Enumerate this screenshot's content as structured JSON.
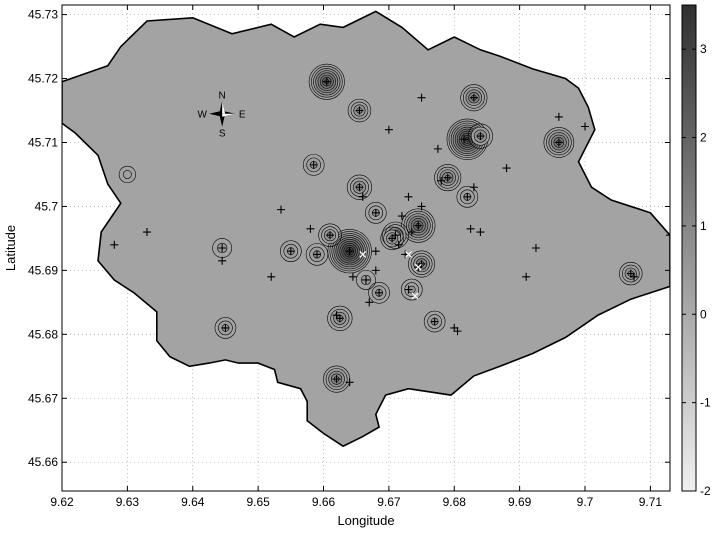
{
  "chart_data": {
    "type": "heatmap",
    "xlabel": "Longitude",
    "ylabel": "Latitude",
    "xlim": [
      9.62,
      9.713
    ],
    "ylim": [
      45.6555,
      45.7315
    ],
    "x_ticks": [
      "9.62",
      "9.63",
      "9.64",
      "9.65",
      "9.66",
      "9.67",
      "9.68",
      "9.69",
      "9.7",
      "9.71"
    ],
    "x_tick_values": [
      9.62,
      9.63,
      9.64,
      9.65,
      9.66,
      9.67,
      9.68,
      9.69,
      9.7,
      9.71
    ],
    "y_ticks": [
      "45.66",
      "45.67",
      "45.68",
      "45.69",
      "45.7",
      "45.71",
      "45.72",
      "45.73"
    ],
    "y_tick_values": [
      45.66,
      45.67,
      45.68,
      45.69,
      45.7,
      45.71,
      45.72,
      45.73
    ],
    "grid": true,
    "colorbar": {
      "min": -2,
      "max": 3.5,
      "ticks": [
        "-2",
        "-1",
        "0",
        "1",
        "2",
        "3"
      ],
      "tick_values": [
        -2,
        -1,
        0,
        1,
        2,
        3
      ],
      "color_low": "#f0f0f0",
      "color_high": "#303030"
    },
    "region_fill": "#a3a3a3",
    "compass": {
      "n": "N",
      "s": "S",
      "e": "E",
      "w": "W",
      "lon": 9.6445,
      "lat": 45.7145
    },
    "boundary": [
      [
        9.62,
        45.7195
      ],
      [
        9.627,
        45.722
      ],
      [
        9.629,
        45.725
      ],
      [
        9.633,
        45.729
      ],
      [
        9.64,
        45.7295
      ],
      [
        9.646,
        45.727
      ],
      [
        9.652,
        45.7285
      ],
      [
        9.6555,
        45.7265
      ],
      [
        9.6595,
        45.7285
      ],
      [
        9.663,
        45.728
      ],
      [
        9.668,
        45.7305
      ],
      [
        9.672,
        45.728
      ],
      [
        9.676,
        45.7245
      ],
      [
        9.68,
        45.7265
      ],
      [
        9.684,
        45.7245
      ],
      [
        9.687,
        45.7235
      ],
      [
        9.692,
        45.7215
      ],
      [
        9.697,
        45.72
      ],
      [
        9.699,
        45.7185
      ],
      [
        9.7005,
        45.7155
      ],
      [
        9.7015,
        45.712
      ],
      [
        9.699,
        45.707
      ],
      [
        9.701,
        45.703
      ],
      [
        9.704,
        45.701
      ],
      [
        9.71,
        45.699
      ],
      [
        9.713,
        45.6955
      ],
      [
        9.713,
        45.6875
      ],
      [
        9.707,
        45.6855
      ],
      [
        9.702,
        45.683
      ],
      [
        9.697,
        45.6795
      ],
      [
        9.692,
        45.677
      ],
      [
        9.687,
        45.675
      ],
      [
        9.683,
        45.6735
      ],
      [
        9.6795,
        45.6705
      ],
      [
        9.673,
        45.6715
      ],
      [
        9.6695,
        45.6705
      ],
      [
        9.668,
        45.6675
      ],
      [
        9.6685,
        45.6655
      ],
      [
        9.666,
        45.664
      ],
      [
        9.663,
        45.6625
      ],
      [
        9.66,
        45.6645
      ],
      [
        9.6575,
        45.6665
      ],
      [
        9.6575,
        45.6695
      ],
      [
        9.6565,
        45.6715
      ],
      [
        9.653,
        45.6725
      ],
      [
        9.6525,
        45.6745
      ],
      [
        9.65,
        45.6755
      ],
      [
        9.647,
        45.6755
      ],
      [
        9.645,
        45.676
      ],
      [
        9.6425,
        45.6755
      ],
      [
        9.6395,
        45.675
      ],
      [
        9.6365,
        45.6765
      ],
      [
        9.6345,
        45.679
      ],
      [
        9.6345,
        45.6835
      ],
      [
        9.631,
        45.6865
      ],
      [
        9.628,
        45.6885
      ],
      [
        9.6255,
        45.6915
      ],
      [
        9.626,
        45.696
      ],
      [
        9.629,
        45.7005
      ],
      [
        9.627,
        45.7035
      ],
      [
        9.6255,
        45.708
      ],
      [
        9.622,
        45.7115
      ],
      [
        9.62,
        45.713
      ]
    ],
    "hotspots": [
      {
        "lon": 9.6605,
        "lat": 45.7195,
        "level": 2.6
      },
      {
        "lon": 9.6655,
        "lat": 45.715,
        "level": 1.2
      },
      {
        "lon": 9.683,
        "lat": 45.717,
        "level": 1.6
      },
      {
        "lon": 9.682,
        "lat": 45.7105,
        "level": 3.2
      },
      {
        "lon": 9.684,
        "lat": 45.711,
        "level": 1.4
      },
      {
        "lon": 9.696,
        "lat": 45.71,
        "level": 2.0
      },
      {
        "lon": 9.6585,
        "lat": 45.7065,
        "level": 1.0
      },
      {
        "lon": 9.679,
        "lat": 45.7045,
        "level": 1.6
      },
      {
        "lon": 9.6655,
        "lat": 45.703,
        "level": 1.4
      },
      {
        "lon": 9.664,
        "lat": 45.693,
        "level": 3.5
      },
      {
        "lon": 9.661,
        "lat": 45.6955,
        "level": 1.2
      },
      {
        "lon": 9.659,
        "lat": 45.6925,
        "level": 1.1
      },
      {
        "lon": 9.6745,
        "lat": 45.697,
        "level": 2.4
      },
      {
        "lon": 9.671,
        "lat": 45.6955,
        "level": 1.6
      },
      {
        "lon": 9.675,
        "lat": 45.691,
        "level": 1.6
      },
      {
        "lon": 9.668,
        "lat": 45.699,
        "level": 1.0
      },
      {
        "lon": 9.6705,
        "lat": 45.695,
        "level": 1.2
      },
      {
        "lon": 9.662,
        "lat": 45.673,
        "level": 1.6
      },
      {
        "lon": 9.6625,
        "lat": 45.6825,
        "level": 1.4
      },
      {
        "lon": 9.677,
        "lat": 45.682,
        "level": 1.0
      },
      {
        "lon": 9.655,
        "lat": 45.693,
        "level": 1.0
      },
      {
        "lon": 9.645,
        "lat": 45.681,
        "level": 1.0
      },
      {
        "lon": 9.707,
        "lat": 45.6895,
        "level": 1.2
      },
      {
        "lon": 9.682,
        "lat": 45.7015,
        "level": 1.0
      },
      {
        "lon": 9.6735,
        "lat": 45.687,
        "level": 1.0
      },
      {
        "lon": 9.6685,
        "lat": 45.6865,
        "level": 1.0
      },
      {
        "lon": 9.6665,
        "lat": 45.6885,
        "level": 0.8
      },
      {
        "lon": 9.6445,
        "lat": 45.6935,
        "level": 0.8
      },
      {
        "lon": 9.63,
        "lat": 45.705,
        "level": 0.5
      }
    ],
    "markers_plus": [
      [
        9.628,
        45.694
      ],
      [
        9.633,
        45.696
      ],
      [
        9.6445,
        45.6935
      ],
      [
        9.6445,
        45.6915
      ],
      [
        9.645,
        45.681
      ],
      [
        9.652,
        45.689
      ],
      [
        9.6535,
        45.6995
      ],
      [
        9.655,
        45.693
      ],
      [
        9.658,
        45.6965
      ],
      [
        9.659,
        45.6925
      ],
      [
        9.6585,
        45.7065
      ],
      [
        9.6605,
        45.7195
      ],
      [
        9.661,
        45.6955
      ],
      [
        9.662,
        45.673
      ],
      [
        9.662,
        45.683
      ],
      [
        9.6625,
        45.6825
      ],
      [
        9.664,
        45.693
      ],
      [
        9.664,
        45.6725
      ],
      [
        9.6645,
        45.689
      ],
      [
        9.6655,
        45.703
      ],
      [
        9.6655,
        45.715
      ],
      [
        9.666,
        45.7015
      ],
      [
        9.6665,
        45.6885
      ],
      [
        9.667,
        45.685
      ],
      [
        9.668,
        45.699
      ],
      [
        9.668,
        45.693
      ],
      [
        9.668,
        45.69
      ],
      [
        9.6685,
        45.6865
      ],
      [
        9.67,
        45.712
      ],
      [
        9.6705,
        45.695
      ],
      [
        9.671,
        45.6955
      ],
      [
        9.6715,
        45.694
      ],
      [
        9.672,
        45.6985
      ],
      [
        9.6725,
        45.6925
      ],
      [
        9.673,
        45.687
      ],
      [
        9.673,
        45.7015
      ],
      [
        9.6735,
        45.696
      ],
      [
        9.6745,
        45.697
      ],
      [
        9.6745,
        45.6905
      ],
      [
        9.675,
        45.691
      ],
      [
        9.675,
        45.7
      ],
      [
        9.675,
        45.717
      ],
      [
        9.677,
        45.682
      ],
      [
        9.6775,
        45.709
      ],
      [
        9.678,
        45.704
      ],
      [
        9.679,
        45.7045
      ],
      [
        9.68,
        45.681
      ],
      [
        9.6805,
        45.6805
      ],
      [
        9.6815,
        45.7105
      ],
      [
        9.682,
        45.7015
      ],
      [
        9.6825,
        45.6965
      ],
      [
        9.683,
        45.703
      ],
      [
        9.683,
        45.717
      ],
      [
        9.684,
        45.711
      ],
      [
        9.684,
        45.696
      ],
      [
        9.688,
        45.706
      ],
      [
        9.691,
        45.689
      ],
      [
        9.6925,
        45.6935
      ],
      [
        9.696,
        45.714
      ],
      [
        9.696,
        45.71
      ],
      [
        9.7,
        45.7125
      ],
      [
        9.707,
        45.6895
      ],
      [
        9.7075,
        45.689
      ],
      [
        9.713,
        45.6955
      ]
    ],
    "markers_x": [
      [
        9.666,
        45.6925
      ],
      [
        9.673,
        45.6925
      ],
      [
        9.674,
        45.686
      ],
      [
        9.6745,
        45.6905
      ]
    ]
  }
}
